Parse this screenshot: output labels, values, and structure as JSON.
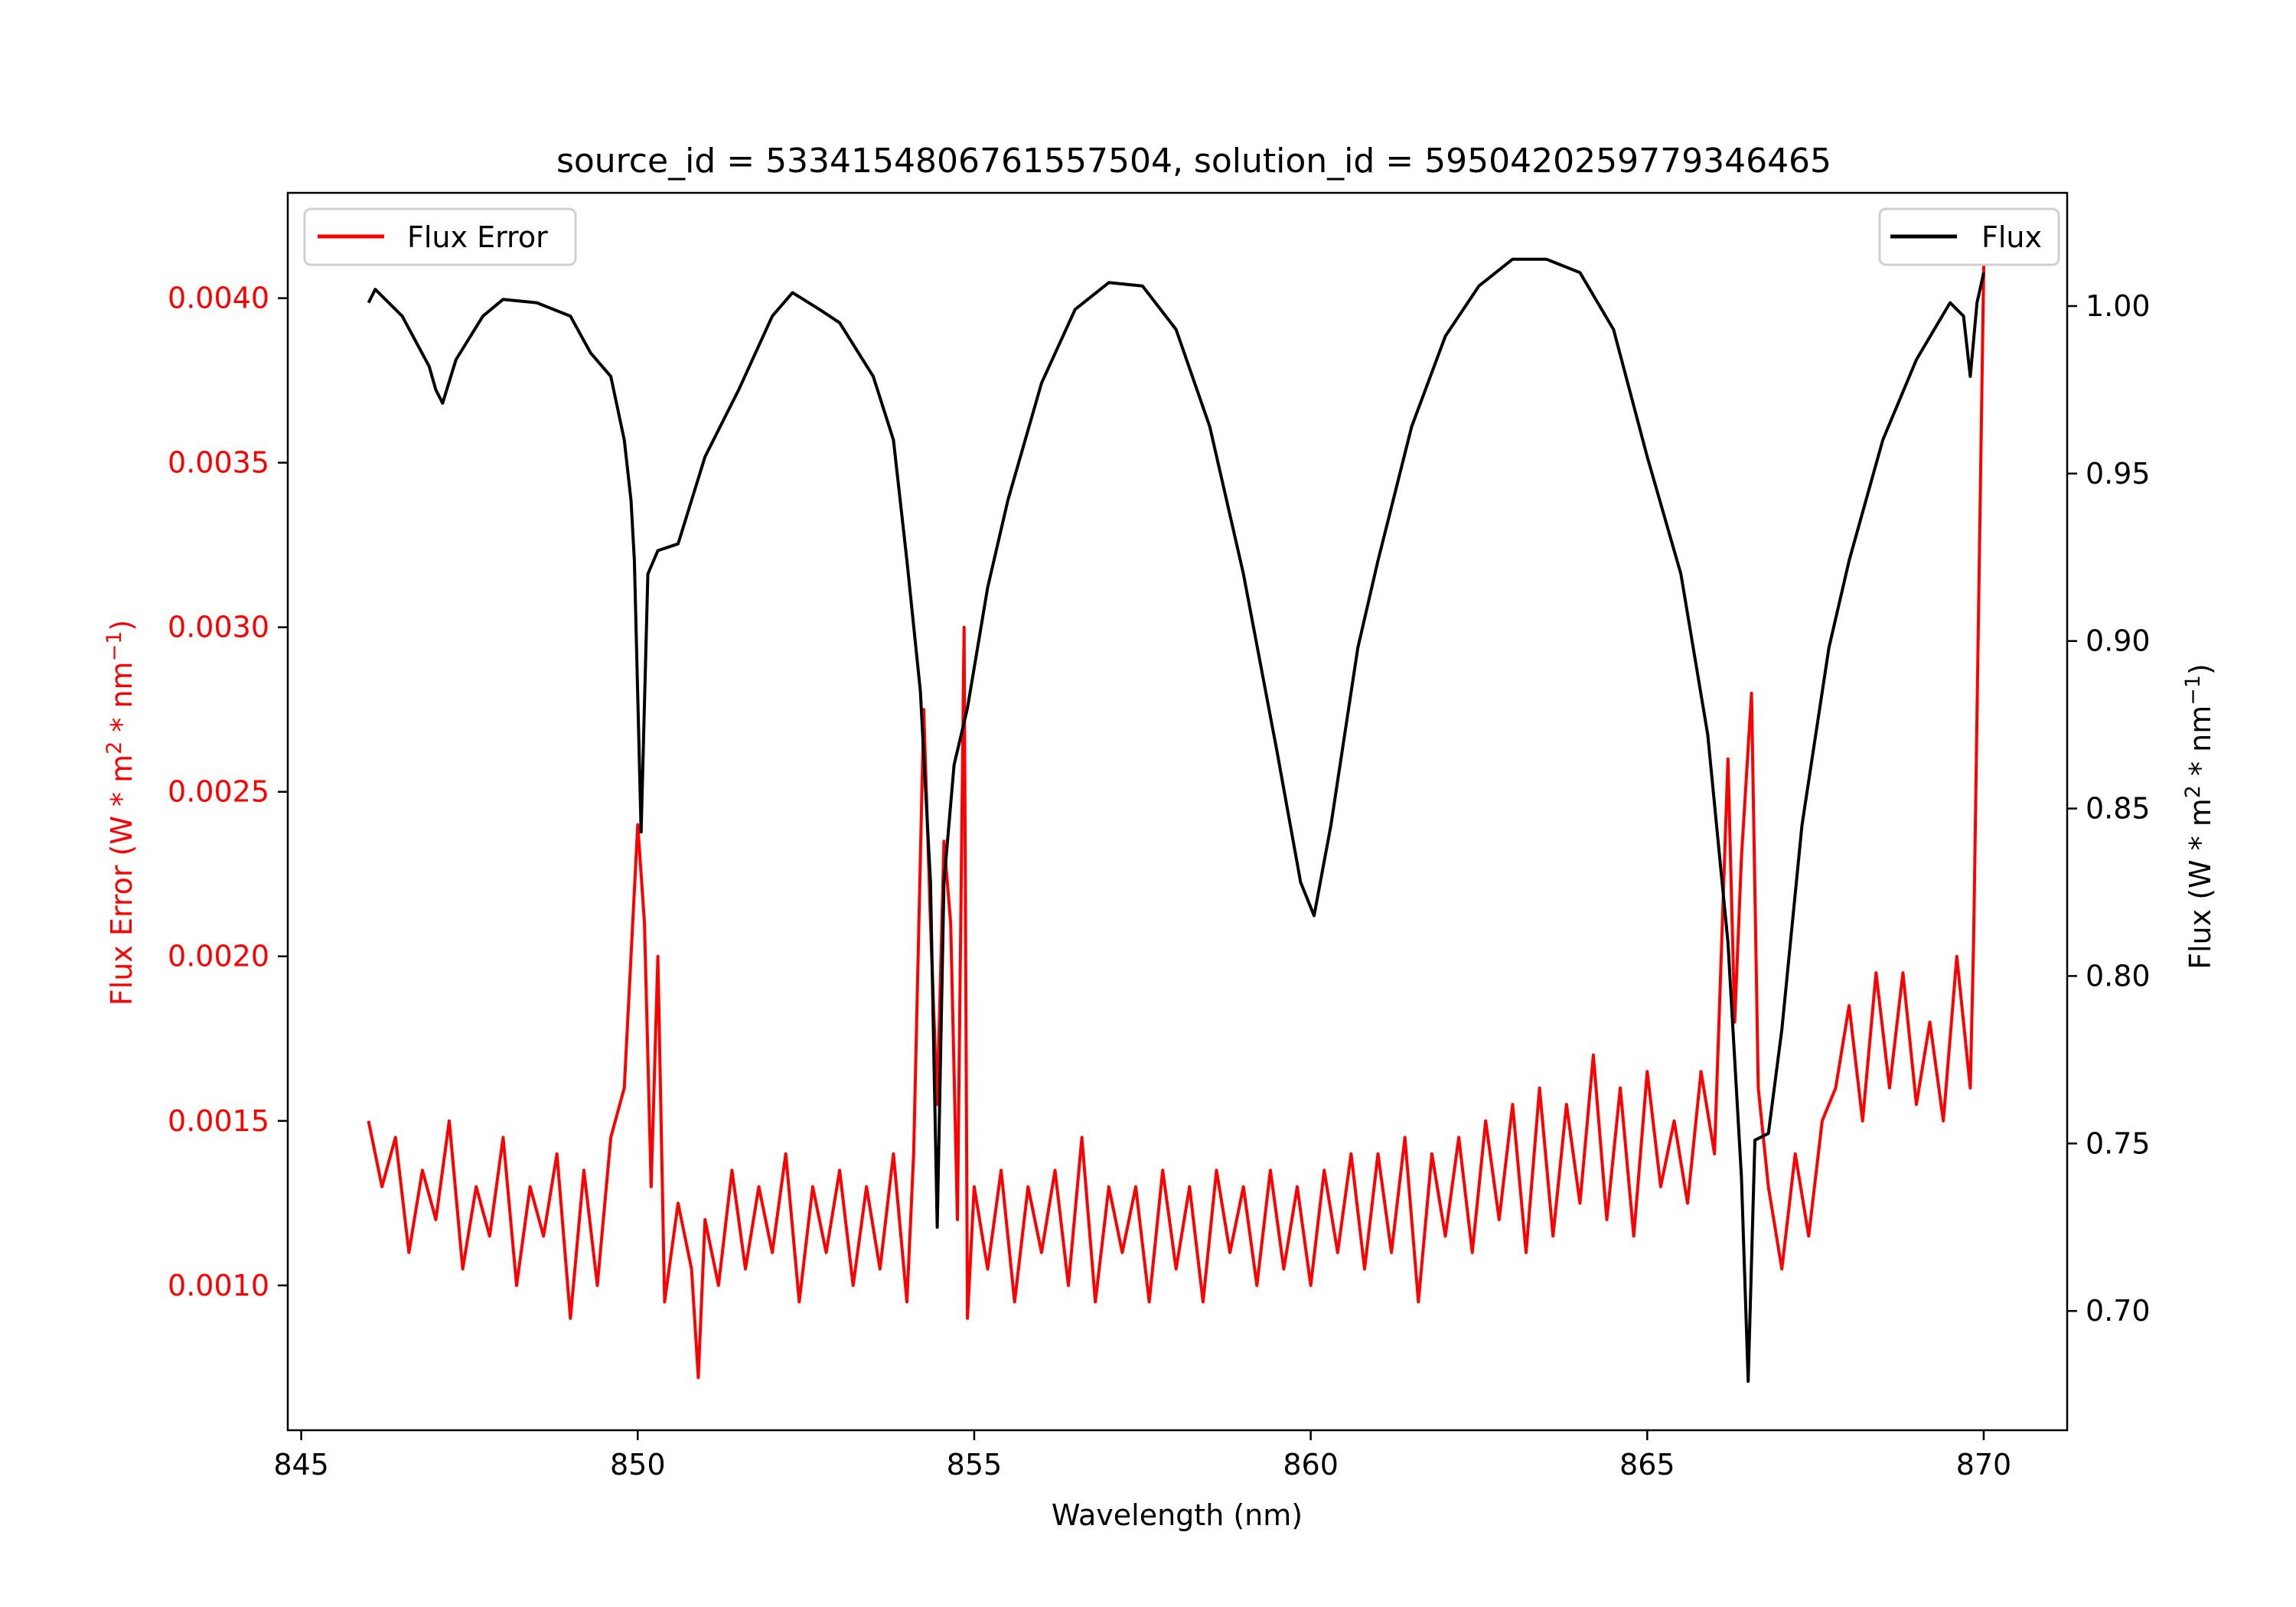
{
  "chart_data": {
    "type": "line",
    "title": "source_id = 5334154806761557504, solution_id = 5950420259779346465",
    "xlabel": "Wavelength (nm)",
    "ylabel_left": "Flux Error (W * m$^2$ * nm$^{-1}$)",
    "ylabel_left_parts": {
      "pre": "Flux Error (W * m",
      "sup1": "2",
      "mid": " * nm",
      "sup2": "−1",
      "post": ")"
    },
    "ylabel_right_parts": {
      "pre": "Flux (W * m",
      "sup1": "2",
      "mid": " * nm",
      "sup2": "−1",
      "post": ")"
    },
    "xlim": [
      844.8,
      871.24
    ],
    "ylim_left": [
      0.00056,
      0.00432
    ],
    "ylim_right": [
      0.6644,
      1.0338
    ],
    "xticks": [
      "845",
      "850",
      "855",
      "860",
      "865",
      "870"
    ],
    "xtick_values": [
      845,
      850,
      855,
      860,
      865,
      870
    ],
    "yticks_left": [
      "0.0010",
      "0.0015",
      "0.0020",
      "0.0025",
      "0.0030",
      "0.0035",
      "0.0040"
    ],
    "ytick_left_values": [
      0.001,
      0.0015,
      0.002,
      0.0025,
      0.003,
      0.0035,
      0.004
    ],
    "yticks_right": [
      "0.70",
      "0.75",
      "0.80",
      "0.85",
      "0.90",
      "0.95",
      "1.00"
    ],
    "ytick_right_values": [
      0.7,
      0.75,
      0.8,
      0.85,
      0.9,
      0.95,
      1.0
    ],
    "grid": false,
    "legend_left": {
      "label": "Flux Error",
      "placement": "upper-left"
    },
    "legend_right": {
      "label": "Flux",
      "placement": "upper-right"
    },
    "colors": {
      "flux_error": "#ff0000",
      "flux": "#000000",
      "left_axis_text": "#ff0000"
    },
    "series": [
      {
        "name": "Flux",
        "axis": "right",
        "x": [
          846.0,
          846.1,
          846.5,
          846.9,
          847.0,
          847.1,
          847.3,
          847.7,
          848.0,
          848.5,
          849.0,
          849.3,
          849.6,
          849.8,
          849.9,
          849.95,
          850.05,
          850.15,
          850.3,
          850.6,
          850.8,
          851.0,
          851.5,
          852.0,
          852.3,
          852.7,
          853.0,
          853.5,
          853.8,
          854.0,
          854.2,
          854.35,
          854.45,
          854.55,
          854.7,
          854.9,
          855.2,
          855.5,
          856.0,
          856.5,
          857.0,
          857.5,
          858.0,
          858.5,
          859.0,
          859.5,
          859.85,
          860.05,
          860.3,
          860.7,
          861.0,
          861.5,
          862.0,
          862.5,
          863.0,
          863.5,
          864.0,
          864.5,
          865.0,
          865.5,
          865.9,
          866.2,
          866.4,
          866.5,
          866.6,
          866.8,
          867.0,
          867.3,
          867.7,
          868.0,
          868.5,
          869.0,
          869.5,
          869.7,
          869.8,
          869.9,
          870.0
        ],
        "y": [
          1.001,
          1.005,
          0.997,
          0.982,
          0.975,
          0.971,
          0.984,
          0.997,
          1.002,
          1.001,
          0.997,
          0.986,
          0.979,
          0.96,
          0.942,
          0.924,
          0.843,
          0.92,
          0.927,
          0.929,
          0.942,
          0.955,
          0.975,
          0.997,
          1.004,
          0.999,
          0.995,
          0.979,
          0.96,
          0.924,
          0.885,
          0.828,
          0.725,
          0.828,
          0.863,
          0.88,
          0.916,
          0.942,
          0.977,
          0.999,
          1.007,
          1.006,
          0.993,
          0.964,
          0.92,
          0.867,
          0.828,
          0.818,
          0.845,
          0.898,
          0.924,
          0.964,
          0.991,
          1.006,
          1.014,
          1.014,
          1.01,
          0.993,
          0.955,
          0.92,
          0.872,
          0.81,
          0.74,
          0.679,
          0.751,
          0.753,
          0.784,
          0.845,
          0.898,
          0.924,
          0.96,
          0.984,
          1.001,
          0.997,
          0.979,
          1.001,
          1.01
        ]
      },
      {
        "name": "Flux Error",
        "axis": "left",
        "x": [
          846.0,
          846.2,
          846.4,
          846.6,
          846.8,
          847.0,
          847.2,
          847.4,
          847.6,
          847.8,
          848.0,
          848.2,
          848.4,
          848.6,
          848.8,
          849.0,
          849.2,
          849.4,
          849.6,
          849.8,
          850.0,
          850.1,
          850.2,
          850.3,
          850.4,
          850.6,
          850.8,
          850.9,
          851.0,
          851.2,
          851.4,
          851.6,
          851.8,
          852.0,
          852.2,
          852.4,
          852.6,
          852.8,
          853.0,
          853.2,
          853.4,
          853.6,
          853.8,
          854.0,
          854.1,
          854.25,
          854.35,
          854.45,
          854.55,
          854.65,
          854.75,
          854.85,
          854.9,
          855.0,
          855.2,
          855.4,
          855.6,
          855.8,
          856.0,
          856.2,
          856.4,
          856.6,
          856.8,
          857.0,
          857.2,
          857.4,
          857.6,
          857.8,
          858.0,
          858.2,
          858.4,
          858.6,
          858.8,
          859.0,
          859.2,
          859.4,
          859.6,
          859.8,
          860.0,
          860.2,
          860.4,
          860.6,
          860.8,
          861.0,
          861.2,
          861.4,
          861.6,
          861.8,
          862.0,
          862.2,
          862.4,
          862.6,
          862.8,
          863.0,
          863.2,
          863.4,
          863.6,
          863.8,
          864.0,
          864.2,
          864.4,
          864.6,
          864.8,
          865.0,
          865.2,
          865.4,
          865.6,
          865.8,
          866.0,
          866.2,
          866.3,
          866.4,
          866.55,
          866.65,
          866.8,
          867.0,
          867.2,
          867.4,
          867.6,
          867.8,
          868.0,
          868.2,
          868.4,
          868.6,
          868.8,
          869.0,
          869.2,
          869.4,
          869.6,
          869.8,
          869.85,
          870.0
        ],
        "y": [
          0.0015,
          0.0013,
          0.00145,
          0.0011,
          0.00135,
          0.0012,
          0.0015,
          0.00105,
          0.0013,
          0.00115,
          0.00145,
          0.001,
          0.0013,
          0.00115,
          0.0014,
          0.0009,
          0.00135,
          0.001,
          0.00145,
          0.0016,
          0.0024,
          0.0021,
          0.0013,
          0.002,
          0.00095,
          0.00125,
          0.00105,
          0.00072,
          0.0012,
          0.001,
          0.00135,
          0.00105,
          0.0013,
          0.0011,
          0.0014,
          0.00095,
          0.0013,
          0.0011,
          0.00135,
          0.001,
          0.0013,
          0.00105,
          0.0014,
          0.00095,
          0.0014,
          0.00275,
          0.0021,
          0.00155,
          0.00235,
          0.0021,
          0.0012,
          0.003,
          0.0009,
          0.0013,
          0.00105,
          0.00135,
          0.00095,
          0.0013,
          0.0011,
          0.00135,
          0.001,
          0.00145,
          0.00095,
          0.0013,
          0.0011,
          0.0013,
          0.00095,
          0.00135,
          0.00105,
          0.0013,
          0.00095,
          0.00135,
          0.0011,
          0.0013,
          0.001,
          0.00135,
          0.00105,
          0.0013,
          0.001,
          0.00135,
          0.0011,
          0.0014,
          0.00105,
          0.0014,
          0.0011,
          0.00145,
          0.00095,
          0.0014,
          0.00115,
          0.00145,
          0.0011,
          0.0015,
          0.0012,
          0.00155,
          0.0011,
          0.0016,
          0.00115,
          0.00155,
          0.00125,
          0.0017,
          0.0012,
          0.0016,
          0.00115,
          0.00165,
          0.0013,
          0.0015,
          0.00125,
          0.00165,
          0.0014,
          0.0026,
          0.0018,
          0.0023,
          0.0028,
          0.0016,
          0.0013,
          0.00105,
          0.0014,
          0.00115,
          0.0015,
          0.0016,
          0.00185,
          0.0015,
          0.00195,
          0.0016,
          0.00195,
          0.00155,
          0.0018,
          0.0015,
          0.002,
          0.0016,
          0.00205,
          0.0041
        ]
      }
    ]
  }
}
